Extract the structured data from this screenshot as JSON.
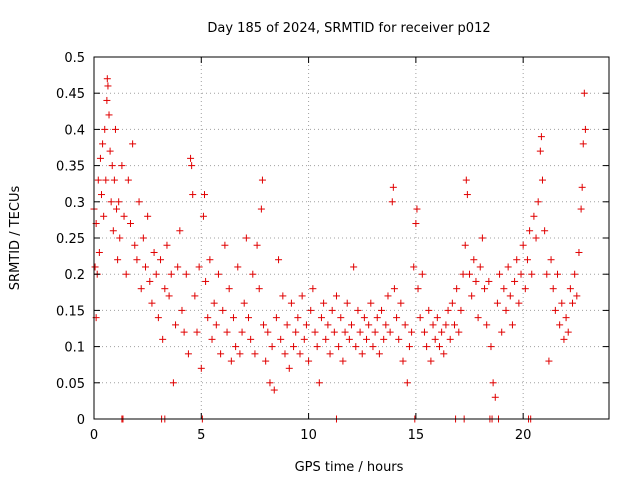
{
  "chart_data": {
    "type": "scatter",
    "title": "Day 185 of 2024, SRMTID for receiver p012",
    "xlabel": "GPS time / hours",
    "ylabel": "SRMTID / TECUs",
    "xlim": [
      0,
      24
    ],
    "ylim": [
      0,
      0.5
    ],
    "xticks": [
      0,
      5,
      10,
      15,
      20
    ],
    "xtick_labels": [
      "0",
      "5",
      "10",
      "15",
      "20"
    ],
    "yticks": [
      0,
      0.05,
      0.1,
      0.15,
      0.2,
      0.25,
      0.3,
      0.35,
      0.4,
      0.45,
      0.5
    ],
    "ytick_labels": [
      "0",
      "0.05",
      "0.1",
      "0.15",
      "0.2",
      "0.25",
      "0.3",
      "0.35",
      "0.4",
      "0.45",
      "0.5"
    ],
    "grid": true,
    "marker": "+",
    "color": "#e00000",
    "series": [
      {
        "name": "SRMTID",
        "points": [
          [
            0.0,
            0.29
          ],
          [
            0.05,
            0.21
          ],
          [
            0.1,
            0.27
          ],
          [
            0.1,
            0.14
          ],
          [
            0.15,
            0.2
          ],
          [
            0.2,
            0.33
          ],
          [
            0.25,
            0.23
          ],
          [
            0.3,
            0.36
          ],
          [
            0.35,
            0.31
          ],
          [
            0.4,
            0.38
          ],
          [
            0.45,
            0.28
          ],
          [
            0.5,
            0.4
          ],
          [
            0.55,
            0.33
          ],
          [
            0.6,
            0.44
          ],
          [
            0.62,
            0.47
          ],
          [
            0.65,
            0.46
          ],
          [
            0.7,
            0.42
          ],
          [
            0.75,
            0.37
          ],
          [
            0.8,
            0.3
          ],
          [
            0.85,
            0.35
          ],
          [
            0.9,
            0.26
          ],
          [
            0.95,
            0.33
          ],
          [
            1.0,
            0.4
          ],
          [
            1.05,
            0.29
          ],
          [
            1.1,
            0.22
          ],
          [
            1.15,
            0.3
          ],
          [
            1.2,
            0.25
          ],
          [
            1.3,
            0.35
          ],
          [
            1.4,
            0.28
          ],
          [
            1.5,
            0.2
          ],
          [
            1.6,
            0.33
          ],
          [
            1.7,
            0.27
          ],
          [
            1.8,
            0.38
          ],
          [
            1.9,
            0.24
          ],
          [
            2.0,
            0.22
          ],
          [
            2.1,
            0.3
          ],
          [
            2.2,
            0.18
          ],
          [
            2.3,
            0.25
          ],
          [
            2.4,
            0.21
          ],
          [
            2.5,
            0.28
          ],
          [
            2.6,
            0.19
          ],
          [
            2.7,
            0.16
          ],
          [
            2.8,
            0.23
          ],
          [
            2.9,
            0.2
          ],
          [
            3.0,
            0.14
          ],
          [
            3.1,
            0.22
          ],
          [
            3.2,
            0.11
          ],
          [
            3.3,
            0.18
          ],
          [
            3.4,
            0.24
          ],
          [
            3.5,
            0.17
          ],
          [
            3.6,
            0.2
          ],
          [
            3.7,
            0.05
          ],
          [
            3.8,
            0.13
          ],
          [
            3.9,
            0.21
          ],
          [
            4.0,
            0.26
          ],
          [
            4.1,
            0.15
          ],
          [
            4.2,
            0.12
          ],
          [
            4.3,
            0.2
          ],
          [
            4.4,
            0.09
          ],
          [
            4.5,
            0.36
          ],
          [
            4.55,
            0.35
          ],
          [
            4.6,
            0.31
          ],
          [
            4.7,
            0.17
          ],
          [
            4.8,
            0.12
          ],
          [
            4.9,
            0.21
          ],
          [
            5.0,
            0.07
          ],
          [
            5.1,
            0.28
          ],
          [
            5.15,
            0.31
          ],
          [
            5.2,
            0.19
          ],
          [
            5.3,
            0.14
          ],
          [
            5.4,
            0.22
          ],
          [
            5.5,
            0.11
          ],
          [
            5.6,
            0.16
          ],
          [
            5.7,
            0.13
          ],
          [
            5.8,
            0.2
          ],
          [
            5.9,
            0.09
          ],
          [
            6.0,
            0.15
          ],
          [
            6.1,
            0.24
          ],
          [
            6.2,
            0.12
          ],
          [
            6.3,
            0.18
          ],
          [
            6.4,
            0.08
          ],
          [
            6.5,
            0.14
          ],
          [
            6.6,
            0.1
          ],
          [
            6.7,
            0.21
          ],
          [
            6.8,
            0.09
          ],
          [
            6.9,
            0.12
          ],
          [
            7.0,
            0.16
          ],
          [
            7.1,
            0.25
          ],
          [
            7.2,
            0.14
          ],
          [
            7.3,
            0.11
          ],
          [
            7.4,
            0.2
          ],
          [
            7.5,
            0.09
          ],
          [
            7.6,
            0.24
          ],
          [
            7.7,
            0.18
          ],
          [
            7.8,
            0.29
          ],
          [
            7.85,
            0.33
          ],
          [
            7.9,
            0.13
          ],
          [
            8.0,
            0.08
          ],
          [
            8.1,
            0.12
          ],
          [
            8.2,
            0.05
          ],
          [
            8.3,
            0.1
          ],
          [
            8.4,
            0.04
          ],
          [
            8.5,
            0.14
          ],
          [
            8.6,
            0.22
          ],
          [
            8.7,
            0.11
          ],
          [
            8.8,
            0.17
          ],
          [
            8.9,
            0.09
          ],
          [
            9.0,
            0.13
          ],
          [
            9.1,
            0.07
          ],
          [
            9.2,
            0.16
          ],
          [
            9.3,
            0.1
          ],
          [
            9.4,
            0.12
          ],
          [
            9.5,
            0.14
          ],
          [
            9.6,
            0.09
          ],
          [
            9.7,
            0.17
          ],
          [
            9.8,
            0.11
          ],
          [
            9.9,
            0.13
          ],
          [
            10.0,
            0.08
          ],
          [
            10.1,
            0.15
          ],
          [
            10.2,
            0.18
          ],
          [
            10.3,
            0.12
          ],
          [
            10.4,
            0.1
          ],
          [
            10.5,
            0.05
          ],
          [
            10.6,
            0.14
          ],
          [
            10.7,
            0.16
          ],
          [
            10.8,
            0.11
          ],
          [
            10.9,
            0.13
          ],
          [
            11.0,
            0.09
          ],
          [
            11.1,
            0.15
          ],
          [
            11.2,
            0.12
          ],
          [
            11.3,
            0.17
          ],
          [
            11.4,
            0.1
          ],
          [
            11.5,
            0.14
          ],
          [
            11.6,
            0.08
          ],
          [
            11.7,
            0.12
          ],
          [
            11.8,
            0.16
          ],
          [
            11.9,
            0.11
          ],
          [
            12.0,
            0.13
          ],
          [
            12.1,
            0.21
          ],
          [
            12.2,
            0.1
          ],
          [
            12.3,
            0.15
          ],
          [
            12.4,
            0.12
          ],
          [
            12.5,
            0.09
          ],
          [
            12.6,
            0.14
          ],
          [
            12.7,
            0.11
          ],
          [
            12.8,
            0.13
          ],
          [
            12.9,
            0.16
          ],
          [
            13.0,
            0.1
          ],
          [
            13.1,
            0.12
          ],
          [
            13.2,
            0.14
          ],
          [
            13.3,
            0.09
          ],
          [
            13.4,
            0.15
          ],
          [
            13.5,
            0.11
          ],
          [
            13.6,
            0.13
          ],
          [
            13.7,
            0.17
          ],
          [
            13.8,
            0.12
          ],
          [
            13.9,
            0.3
          ],
          [
            13.95,
            0.32
          ],
          [
            14.0,
            0.18
          ],
          [
            14.1,
            0.14
          ],
          [
            14.2,
            0.11
          ],
          [
            14.3,
            0.16
          ],
          [
            14.4,
            0.08
          ],
          [
            14.5,
            0.13
          ],
          [
            14.6,
            0.05
          ],
          [
            14.7,
            0.1
          ],
          [
            14.8,
            0.12
          ],
          [
            14.9,
            0.21
          ],
          [
            15.0,
            0.27
          ],
          [
            15.05,
            0.29
          ],
          [
            15.1,
            0.18
          ],
          [
            15.2,
            0.14
          ],
          [
            15.3,
            0.2
          ],
          [
            15.4,
            0.12
          ],
          [
            15.5,
            0.1
          ],
          [
            15.6,
            0.15
          ],
          [
            15.7,
            0.08
          ],
          [
            15.8,
            0.13
          ],
          [
            15.9,
            0.11
          ],
          [
            16.0,
            0.14
          ],
          [
            16.1,
            0.1
          ],
          [
            16.2,
            0.12
          ],
          [
            16.3,
            0.09
          ],
          [
            16.4,
            0.13
          ],
          [
            16.5,
            0.15
          ],
          [
            16.6,
            0.11
          ],
          [
            16.7,
            0.16
          ],
          [
            16.8,
            0.13
          ],
          [
            16.9,
            0.18
          ],
          [
            17.0,
            0.12
          ],
          [
            17.1,
            0.15
          ],
          [
            17.2,
            0.2
          ],
          [
            17.3,
            0.24
          ],
          [
            17.35,
            0.33
          ],
          [
            17.4,
            0.31
          ],
          [
            17.5,
            0.2
          ],
          [
            17.6,
            0.17
          ],
          [
            17.7,
            0.22
          ],
          [
            17.8,
            0.19
          ],
          [
            17.9,
            0.14
          ],
          [
            18.0,
            0.21
          ],
          [
            18.1,
            0.25
          ],
          [
            18.2,
            0.18
          ],
          [
            18.3,
            0.13
          ],
          [
            18.4,
            0.19
          ],
          [
            18.5,
            0.1
          ],
          [
            18.6,
            0.05
          ],
          [
            18.7,
            0.03
          ],
          [
            18.8,
            0.16
          ],
          [
            18.9,
            0.2
          ],
          [
            19.0,
            0.12
          ],
          [
            19.1,
            0.18
          ],
          [
            19.2,
            0.15
          ],
          [
            19.3,
            0.21
          ],
          [
            19.4,
            0.17
          ],
          [
            19.5,
            0.13
          ],
          [
            19.6,
            0.19
          ],
          [
            19.7,
            0.22
          ],
          [
            19.8,
            0.16
          ],
          [
            19.9,
            0.2
          ],
          [
            20.0,
            0.24
          ],
          [
            20.1,
            0.18
          ],
          [
            20.2,
            0.22
          ],
          [
            20.3,
            0.26
          ],
          [
            20.4,
            0.2
          ],
          [
            20.5,
            0.28
          ],
          [
            20.6,
            0.25
          ],
          [
            20.7,
            0.3
          ],
          [
            20.8,
            0.37
          ],
          [
            20.85,
            0.39
          ],
          [
            20.9,
            0.33
          ],
          [
            21.0,
            0.26
          ],
          [
            21.1,
            0.2
          ],
          [
            21.2,
            0.08
          ],
          [
            21.3,
            0.22
          ],
          [
            21.4,
            0.18
          ],
          [
            21.5,
            0.15
          ],
          [
            21.6,
            0.2
          ],
          [
            21.7,
            0.13
          ],
          [
            21.8,
            0.16
          ],
          [
            21.9,
            0.11
          ],
          [
            22.0,
            0.14
          ],
          [
            22.1,
            0.12
          ],
          [
            22.2,
            0.18
          ],
          [
            22.3,
            0.16
          ],
          [
            22.4,
            0.2
          ],
          [
            22.5,
            0.17
          ],
          [
            22.6,
            0.23
          ],
          [
            22.7,
            0.29
          ],
          [
            22.75,
            0.32
          ],
          [
            22.8,
            0.38
          ],
          [
            22.85,
            0.45
          ],
          [
            22.9,
            0.4
          ]
        ],
        "zero_points_x": [
          1.3,
          1.35,
          3.15,
          3.3,
          5.05,
          11.3,
          14.95,
          16.85,
          17.25,
          18.45,
          18.55,
          18.85,
          20.25,
          20.35
        ]
      }
    ]
  }
}
